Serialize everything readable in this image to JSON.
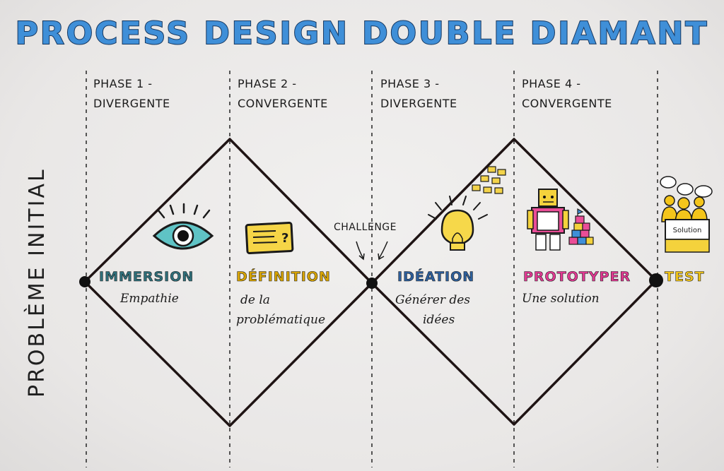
{
  "title": "PROCESS DESIGN DOUBLE DIAMANT",
  "side_label": "PROBLÈME INITIAL",
  "phases": [
    {
      "line1": "PHASE 1 -",
      "line2": "DIVERGENTE"
    },
    {
      "line1": "PHASE 2 -",
      "line2": "CONVERGENTE"
    },
    {
      "line1": "PHASE 3 -",
      "line2": "DIVERGENTE"
    },
    {
      "line1": "PHASE 4 -",
      "line2": "CONVERGENTE"
    }
  ],
  "challenge": "CHALLENGE",
  "steps": [
    {
      "name": "IMMERSION",
      "desc1": "Empathie",
      "desc2": "",
      "color": "#2f6f7a"
    },
    {
      "name": "DÉFINITION",
      "desc1": "de la",
      "desc2": "problématique",
      "color": "#d8a400"
    },
    {
      "name": "IDÉATION",
      "desc1": "Générer des",
      "desc2": "idées",
      "color": "#2d5f9c"
    },
    {
      "name": "PROTOTYPER",
      "desc1": "Une solution",
      "desc2": "",
      "color": "#e23a93"
    }
  ],
  "test": {
    "name": "TEST",
    "sign": "Solution",
    "color": "#f0c419"
  },
  "colors": {
    "teal": "#2ba6ad",
    "yellow": "#f2c81b",
    "pink": "#e9408f",
    "blue": "#3f8fd8",
    "ink": "#1a1a1a"
  }
}
